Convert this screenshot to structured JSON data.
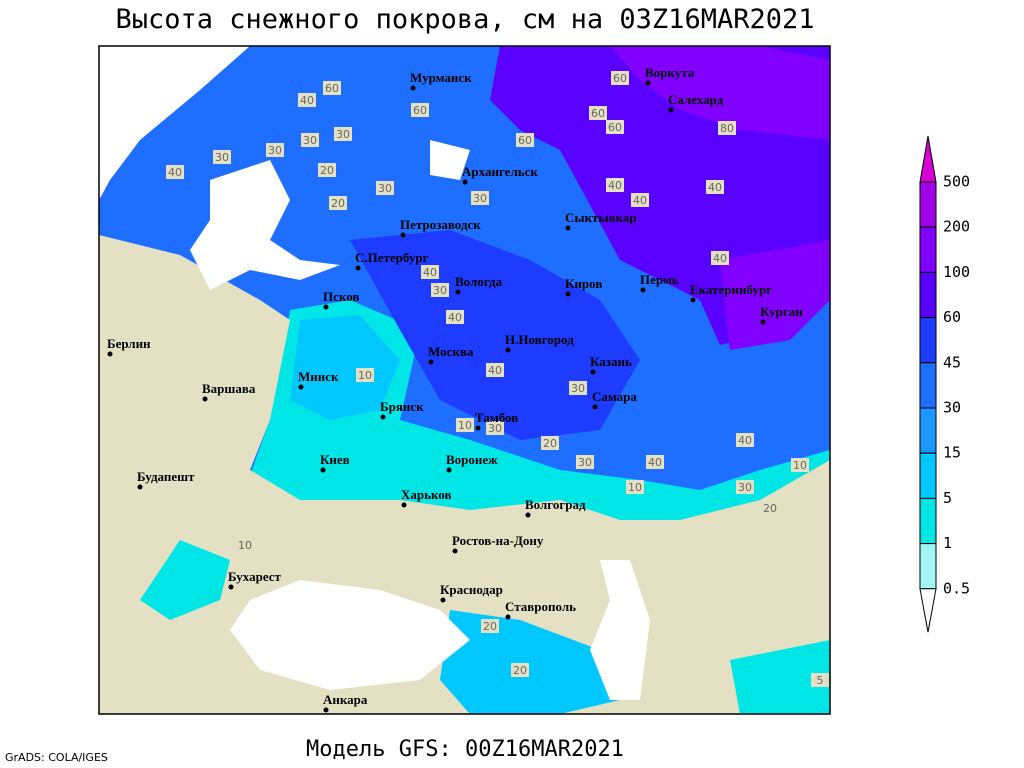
{
  "title": "Высота снежного покрова, см на 03Z16MAR2021",
  "footer_left": "GrADS: COLA/IGES",
  "footer_center": "Модель GFS: 00Z16MAR2021",
  "cities": [
    "Мурманск",
    "Воркута",
    "Салехард",
    "Архангельск",
    "Петрозаводск",
    "Сыктывкар",
    "С.Петербург",
    "Вологда",
    "Киров",
    "Пермь",
    "Екатеринбург",
    "Курган",
    "Псков",
    "Н.Новгород",
    "Казань",
    "Москва",
    "Берлин",
    "Минск",
    "Варшава",
    "Брянск",
    "Тамбов",
    "Самара",
    "Киев",
    "Воронеж",
    "Харьков",
    "Волгоград",
    "Будапешт",
    "Ростов-на-Дону",
    "Бухарест",
    "Краснодар",
    "Ставрополь",
    "Анкара"
  ],
  "contour_labels": [
    40,
    60,
    60,
    30,
    30,
    30,
    30,
    40,
    20,
    30,
    20,
    30,
    60,
    60,
    60,
    60,
    40,
    40,
    80,
    40,
    40,
    40,
    30,
    40,
    10,
    40,
    30,
    10,
    30,
    20,
    30,
    40,
    40,
    10,
    10,
    30,
    20,
    10,
    20,
    20,
    5
  ],
  "legend": {
    "levels": [
      500,
      200,
      100,
      60,
      45,
      30,
      15,
      5,
      1,
      0.5
    ],
    "colors": [
      "#d700d7",
      "#a000e6",
      "#8200ff",
      "#5a00ff",
      "#1e3cff",
      "#1e6eff",
      "#1e96ff",
      "#00c8ff",
      "#00e6e6",
      "#a0f5f5",
      "#ffffff"
    ]
  }
}
